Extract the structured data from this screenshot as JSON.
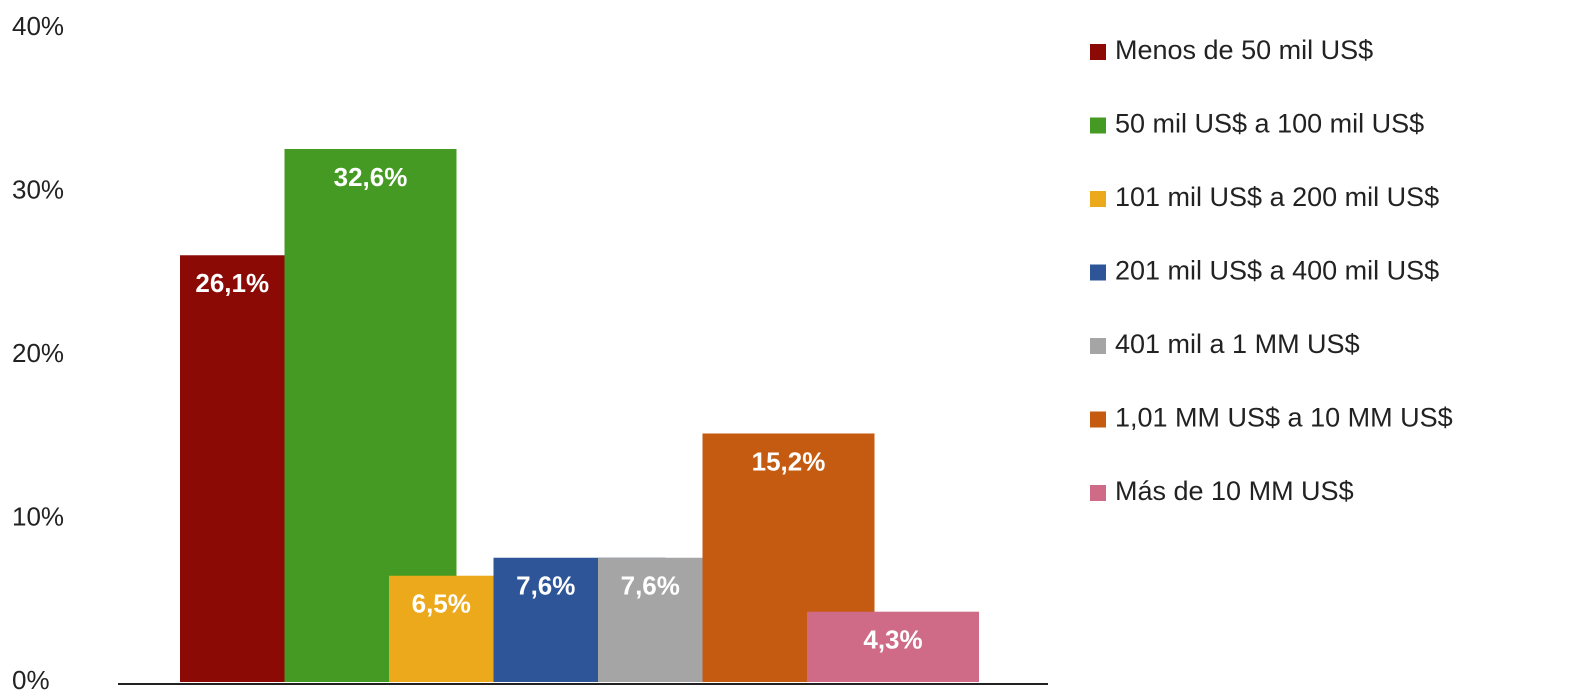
{
  "chart_data": {
    "type": "bar",
    "ylim": [
      0,
      40
    ],
    "yticks": [
      {
        "value": 0,
        "label": "0%"
      },
      {
        "value": 10,
        "label": "10%"
      },
      {
        "value": 20,
        "label": "20%"
      },
      {
        "value": 30,
        "label": "30%"
      },
      {
        "value": 40,
        "label": "40%"
      }
    ],
    "grid": false,
    "legend": "right",
    "series": [
      {
        "name": "Menos de 50 mil US$",
        "color": "#8b0a06",
        "values": [
          26.1
        ],
        "value_labels": [
          "26,1%"
        ]
      },
      {
        "name": "50 mil US$ a 100 mil US$",
        "color": "#449a22",
        "values": [
          32.6
        ],
        "value_labels": [
          "32,6%"
        ]
      },
      {
        "name": "101 mil US$ a 200 mil US$",
        "color": "#eba91b",
        "values": [
          6.5
        ],
        "value_labels": [
          "6,5%"
        ]
      },
      {
        "name": "201 mil US$ a 400 mil US$",
        "color": "#2d5597",
        "values": [
          7.6
        ],
        "value_labels": [
          "7,6%"
        ]
      },
      {
        "name": "401 mil a 1 MM US$",
        "color": "#a5a5a5",
        "values": [
          7.6
        ],
        "value_labels": [
          "7,6%"
        ]
      },
      {
        "name": "1,01 MM US$ a 10 MM US$",
        "color": "#c55a11",
        "values": [
          15.2
        ],
        "value_labels": [
          "15,2%"
        ]
      },
      {
        "name": "Más de 10 MM US$",
        "color": "#cf6a87",
        "values": [
          4.3
        ],
        "value_labels": [
          "4,3%"
        ]
      }
    ]
  }
}
